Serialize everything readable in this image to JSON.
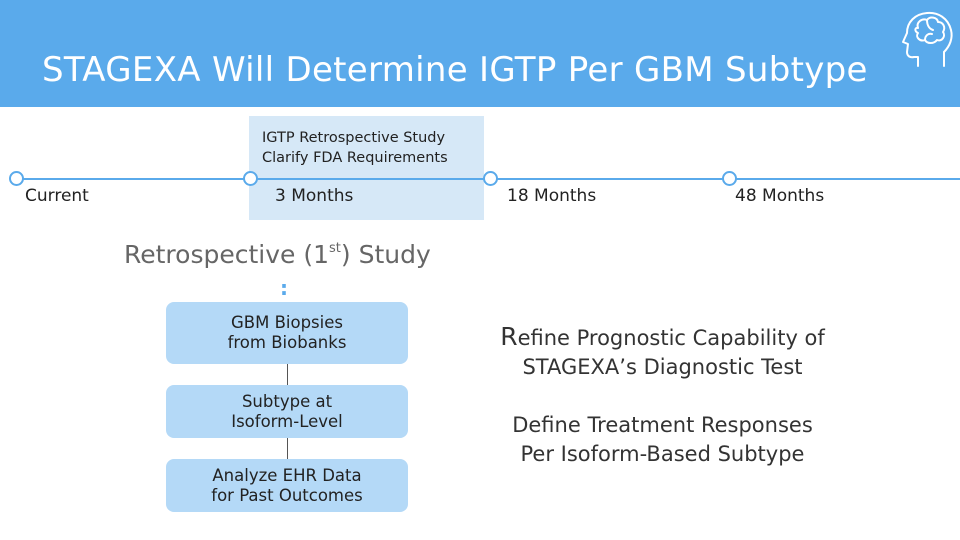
{
  "header": {
    "title": "STAGEXA Will Determine IGTP Per GBM Subtype",
    "icon": "brain-head-icon",
    "background_color": "#5aaaeb"
  },
  "timeline": {
    "milestones": [
      {
        "label": "Current"
      },
      {
        "label": "3 Months"
      },
      {
        "label": "18 Months"
      },
      {
        "label": "48 Months"
      }
    ],
    "highlight": {
      "line1": "IGTP Retrospective Study",
      "line2": "Clarify FDA Requirements",
      "color": "#d6e8f7"
    }
  },
  "study": {
    "title_prefix": "Retrospective (1",
    "title_sup": "st",
    "title_suffix": ") Study",
    "steps": [
      {
        "line1": "GBM Biopsies",
        "line2": "from Biobanks"
      },
      {
        "line1": "Subtype at",
        "line2": "Isoform-Level"
      },
      {
        "line1": "Analyze EHR Data",
        "line2": "for Past Outcomes"
      }
    ],
    "step_color": "#b4d9f7"
  },
  "goals": [
    {
      "first_letter": "R",
      "line1_rest": "efine Prognostic Capability of",
      "line2": "STAGEXA’s Diagnostic Test"
    },
    {
      "line1": "Define Treatment Responses",
      "line2": "Per Isoform-Based Subtype"
    }
  ]
}
